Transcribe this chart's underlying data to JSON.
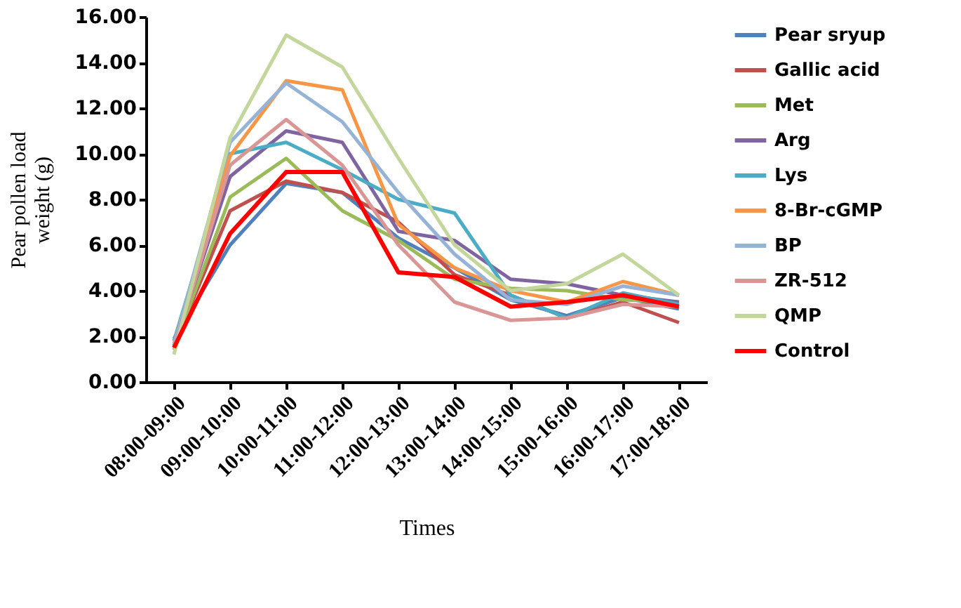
{
  "chart_data": {
    "type": "line",
    "xlabel": "Times",
    "ylabel": "Pear pollen load weight (g)",
    "categories": [
      "08:00-09:00",
      "09:00-10:00",
      "10:00-11:00",
      "11:00-12:00",
      "12:00-13:00",
      "13:00-14:00",
      "14:00-15:00",
      "15:00-16:00",
      "16:00-17:00",
      "17:00-18:00"
    ],
    "ylim": [
      0,
      16
    ],
    "yticks": [
      {
        "value": 0,
        "label": "0.00"
      },
      {
        "value": 2,
        "label": "2.00"
      },
      {
        "value": 4,
        "label": "4.00"
      },
      {
        "value": 6,
        "label": "6.00"
      },
      {
        "value": 8,
        "label": "8.00"
      },
      {
        "value": 10,
        "label": "10.00"
      },
      {
        "value": 12,
        "label": "12.00"
      },
      {
        "value": 14,
        "label": "14.00"
      },
      {
        "value": 16,
        "label": "16.00"
      }
    ],
    "grid": false,
    "legend": "right",
    "marker": "none",
    "line_style": "solid",
    "series": [
      {
        "name": "Pear sryup",
        "color": "#4f81bd",
        "values": [
          1.9,
          6.0,
          8.7,
          8.3,
          6.3,
          5.0,
          3.6,
          2.9,
          3.7,
          3.2
        ]
      },
      {
        "name": "Gallic acid",
        "color": "#c0504d",
        "values": [
          1.6,
          7.5,
          8.8,
          8.3,
          7.0,
          4.7,
          3.8,
          2.8,
          3.5,
          2.6
        ]
      },
      {
        "name": "Met",
        "color": "#9bbb59",
        "values": [
          1.5,
          8.1,
          9.8,
          7.5,
          6.2,
          4.5,
          4.1,
          4.0,
          3.6,
          3.5
        ]
      },
      {
        "name": "Arg",
        "color": "#8064a2",
        "values": [
          1.6,
          9.0,
          11.0,
          10.5,
          6.6,
          6.2,
          4.5,
          4.3,
          3.8,
          3.5
        ]
      },
      {
        "name": "Lys",
        "color": "#4bacc6",
        "values": [
          1.8,
          10.0,
          10.5,
          9.3,
          8.0,
          7.4,
          3.8,
          2.8,
          3.9,
          3.4
        ]
      },
      {
        "name": "8-Br-cGMP",
        "color": "#f79646",
        "values": [
          1.7,
          9.9,
          13.2,
          12.8,
          6.9,
          5.0,
          4.0,
          3.5,
          4.4,
          3.8
        ]
      },
      {
        "name": "BP",
        "color": "#95b3d7",
        "values": [
          1.6,
          10.5,
          13.1,
          11.4,
          8.3,
          5.6,
          3.6,
          3.4,
          4.2,
          3.8
        ]
      },
      {
        "name": "ZR-512",
        "color": "#d99694",
        "values": [
          1.4,
          9.5,
          11.5,
          9.5,
          6.0,
          3.5,
          2.7,
          2.8,
          3.4,
          3.3
        ]
      },
      {
        "name": "QMP",
        "color": "#c3d69b",
        "values": [
          1.2,
          10.7,
          15.2,
          13.8,
          9.8,
          6.0,
          4.0,
          4.3,
          5.6,
          3.8
        ]
      },
      {
        "name": "Control",
        "color": "#ff0000",
        "values": [
          1.5,
          6.5,
          9.2,
          9.2,
          4.8,
          4.6,
          3.3,
          3.5,
          3.8,
          3.3
        ]
      }
    ]
  }
}
